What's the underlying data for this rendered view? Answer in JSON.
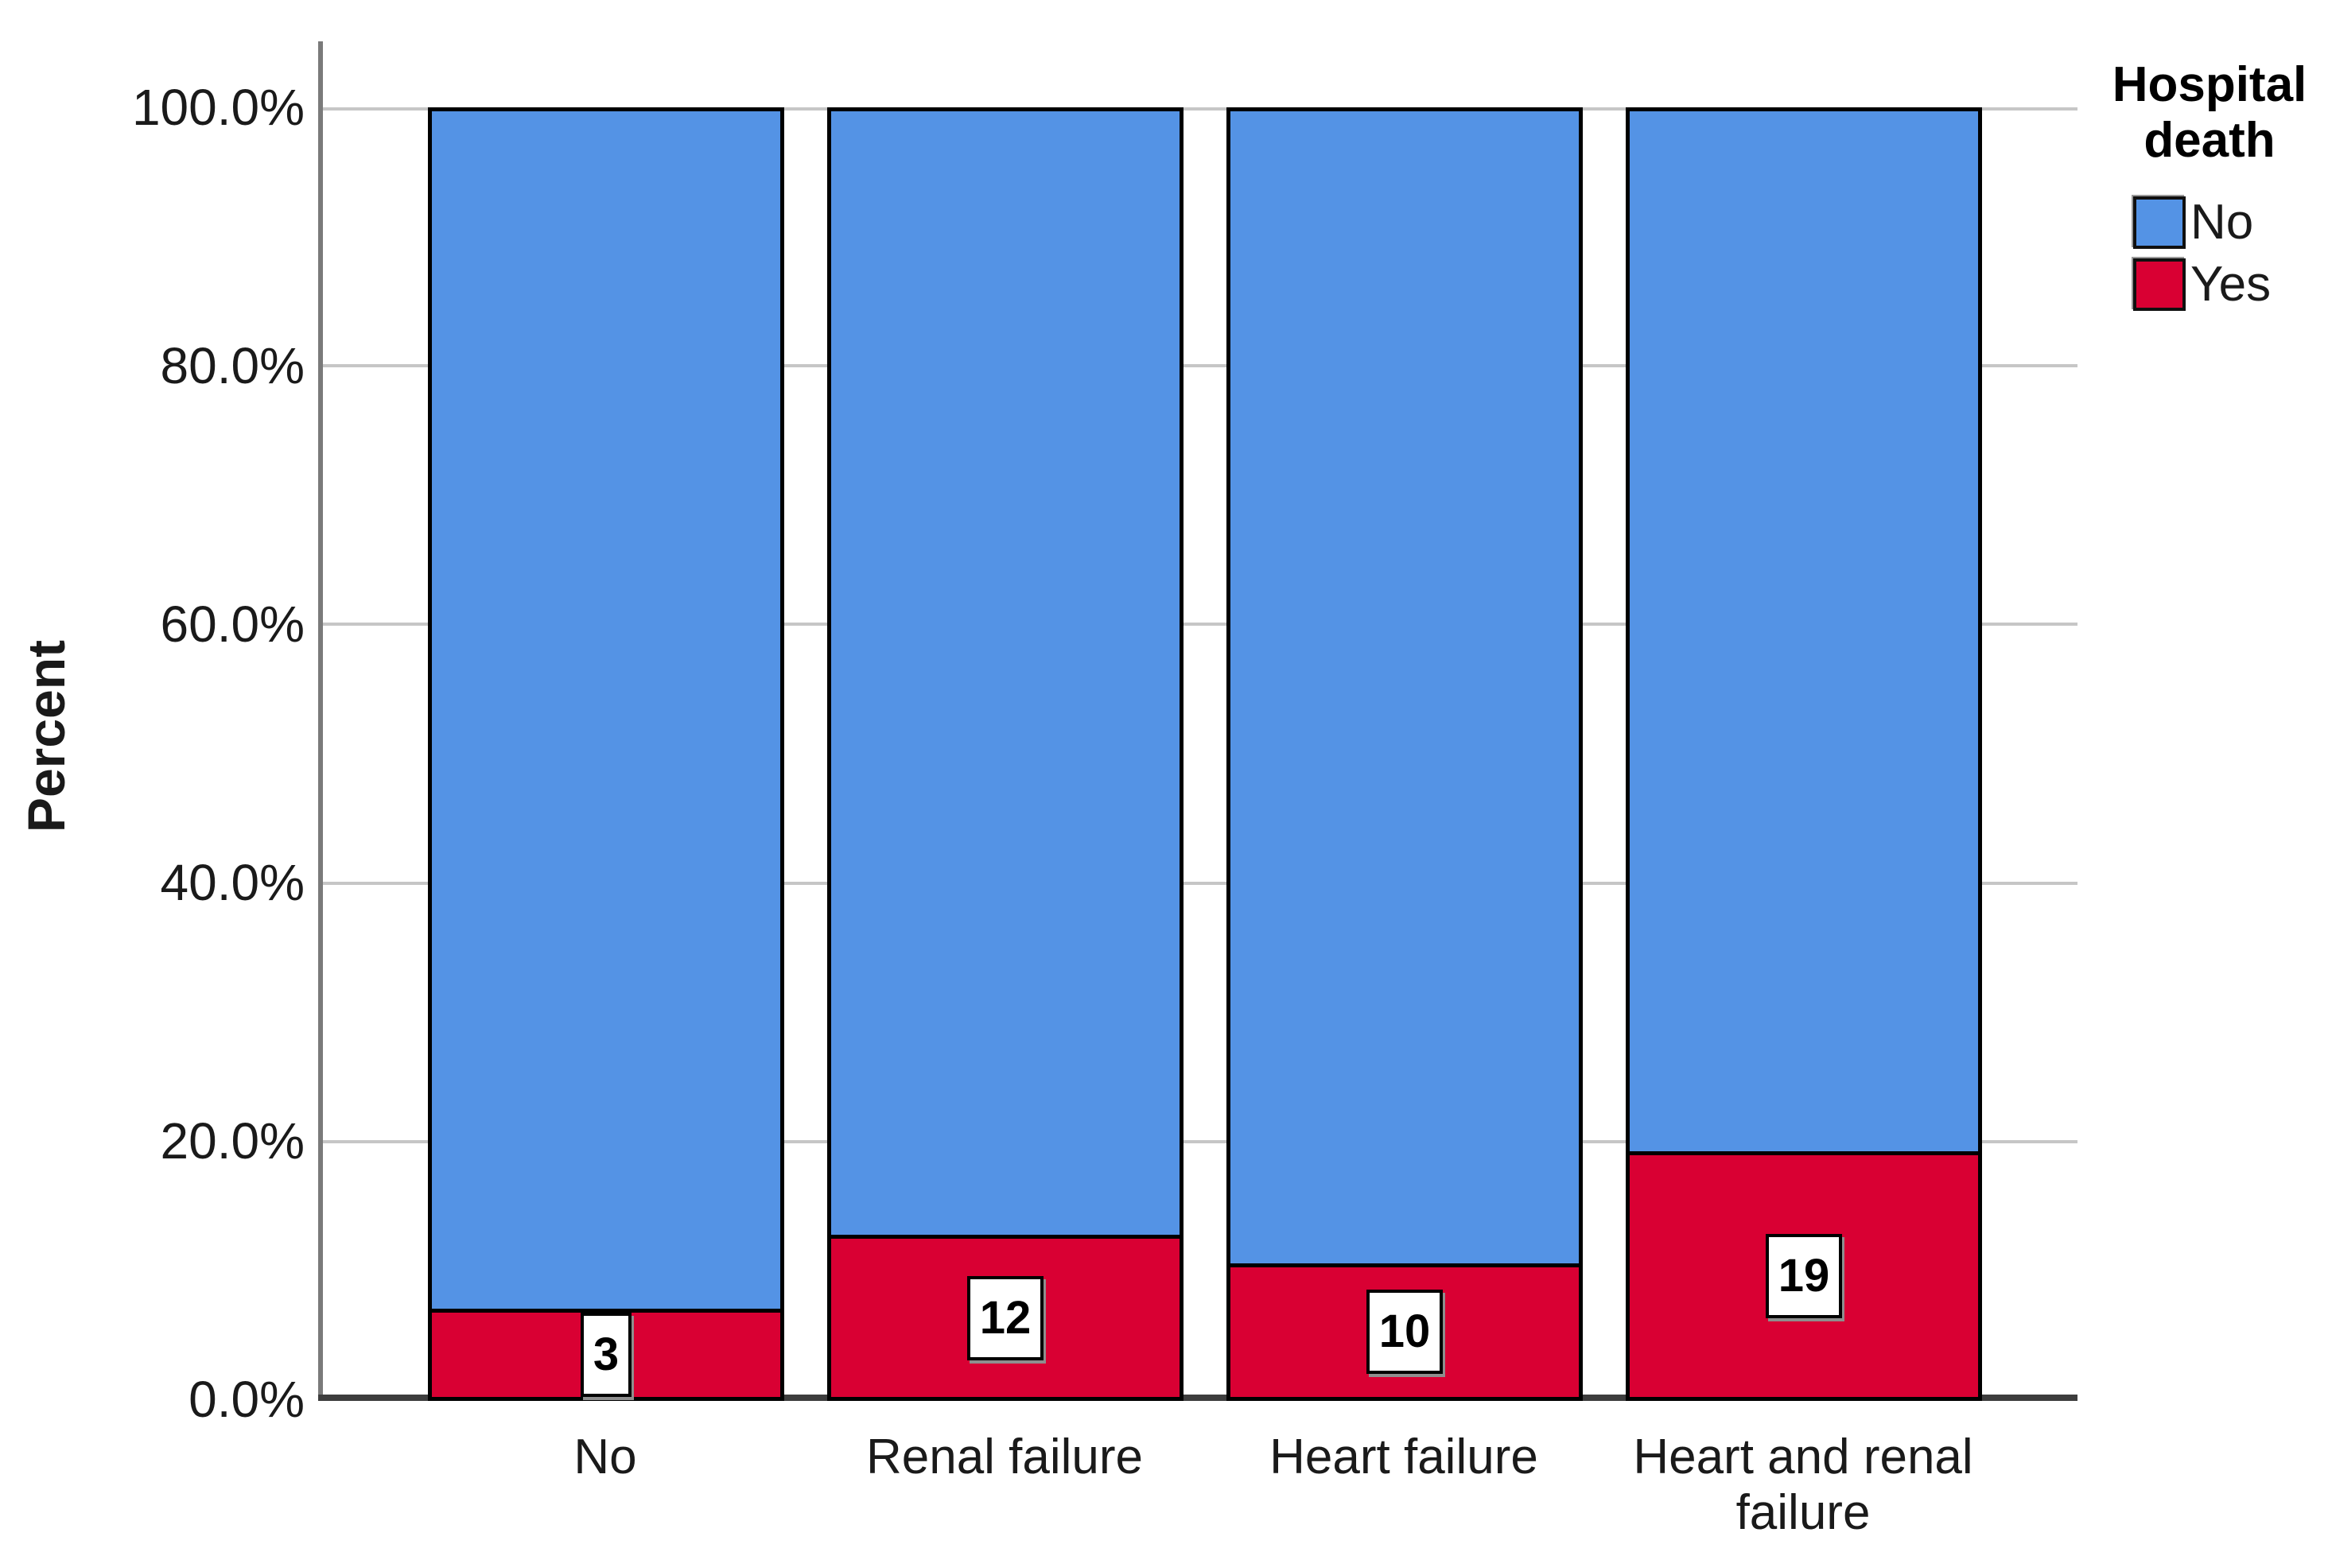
{
  "chart_data": {
    "type": "bar",
    "variant": "100%-stacked-column",
    "title": "",
    "xlabel": "",
    "ylabel": "Percent",
    "ylim": [
      0,
      100
    ],
    "yticks": [
      "0.0%",
      "20.0%",
      "40.0%",
      "60.0%",
      "80.0%",
      "100.0%"
    ],
    "grid": true,
    "legend_title": "Hospital death",
    "legend_position": "top-right",
    "categories": [
      "No",
      "Renal failure",
      "Heart failure",
      "Heart and renal failure"
    ],
    "series": [
      {
        "name": "No",
        "color": "#5493E5",
        "percents": [
          96.9,
          87.7,
          89.9,
          81.2
        ]
      },
      {
        "name": "Yes",
        "color": "#D90033",
        "percents": [
          3.1,
          12.3,
          10.1,
          18.8
        ],
        "counts": [
          "3",
          "12",
          "10",
          "19"
        ]
      }
    ],
    "style_colors": {
      "gridline": "#C6C6C6",
      "y_axis_line": "#7A7A7A",
      "x_axis_line": "#3D3D3D",
      "bar_border": "#000000",
      "value_label_box_bg": "#FFFFFF",
      "value_label_box_border": "#000000"
    }
  }
}
